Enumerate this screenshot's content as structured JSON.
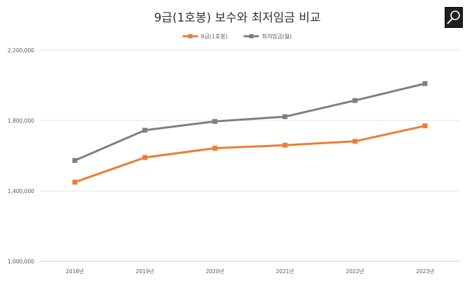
{
  "chart_data": {
    "type": "line",
    "title": "9급(1호봉) 보수와 최저임금 비교",
    "categories": [
      "2018년",
      "2019년",
      "2020년",
      "2021년",
      "2022년",
      "2023년"
    ],
    "series": [
      {
        "name": "9급(1호봉)",
        "color": "#ed7d31",
        "values": [
          1450000,
          1590000,
          1643000,
          1660000,
          1682000,
          1770000
        ]
      },
      {
        "name": "최저임금(월)",
        "color": "#7f7f7f",
        "values": [
          1573000,
          1745000,
          1795000,
          1822000,
          1914000,
          2010000
        ]
      }
    ],
    "y_ticks": [
      "1,000,000",
      "1,400,000",
      "1,800,000",
      "2,200,000"
    ],
    "ylim": [
      1000000,
      2200000
    ],
    "grid": true,
    "legend": "top-center"
  },
  "toolbar": {
    "zoom_icon": "magnifier-icon"
  }
}
